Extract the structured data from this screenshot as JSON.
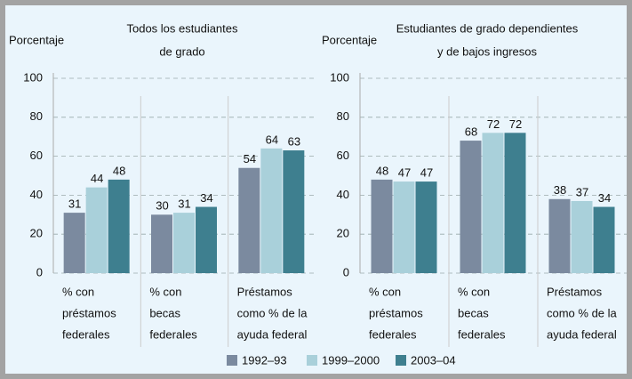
{
  "chart_data": [
    {
      "type": "bar",
      "ylabel": "Porcentaje",
      "title": [
        "Todos los estudiantes",
        "de grado"
      ],
      "categories": [
        [
          "% con",
          "préstamos",
          "federales"
        ],
        [
          "% con",
          "becas",
          "federales"
        ],
        [
          "Préstamos",
          "como % de la",
          "ayuda federal"
        ]
      ],
      "series": [
        {
          "name": "1992–93",
          "color": "#7b8a9f",
          "values": [
            31,
            30,
            54
          ]
        },
        {
          "name": "1999–2000",
          "color": "#a9d0da",
          "values": [
            44,
            31,
            64
          ]
        },
        {
          "name": "2003–04",
          "color": "#3e7f8f",
          "values": [
            48,
            34,
            63
          ]
        }
      ],
      "ylim": [
        0,
        100
      ],
      "yticks": [
        0,
        20,
        40,
        60,
        80,
        100
      ],
      "grid": true
    },
    {
      "type": "bar",
      "ylabel": "Porcentaje",
      "title": [
        "Estudiantes de grado dependientes",
        "y de bajos ingresos"
      ],
      "categories": [
        [
          "% con",
          "préstamos",
          "federales"
        ],
        [
          "% con",
          "becas",
          "federales"
        ],
        [
          "Préstamos",
          "como % de la",
          "ayuda federal"
        ]
      ],
      "series": [
        {
          "color": "#7b8a9f",
          "values": [
            48,
            68,
            38
          ]
        },
        {
          "color": "#a9d0da",
          "values": [
            47,
            72,
            37
          ]
        },
        {
          "color": "#3e7f8f",
          "values": [
            47,
            72,
            34
          ]
        }
      ],
      "ylim": [
        0,
        100
      ],
      "yticks": [
        0,
        20,
        40,
        60,
        80,
        100
      ],
      "grid": true
    }
  ]
}
